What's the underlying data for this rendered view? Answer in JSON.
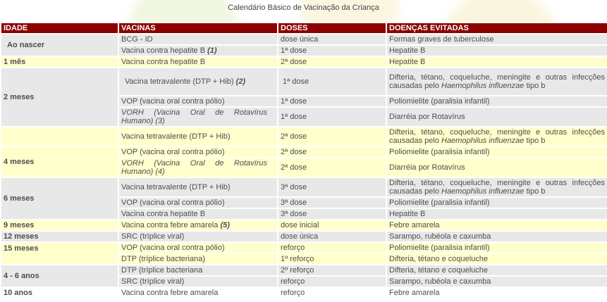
{
  "title": "Calendário Básico de Vacinação da Criança",
  "columns": [
    "IDADE",
    "VACINAS",
    "DOSES",
    "DOENÇAS EVITADAS"
  ],
  "colors": {
    "header_bg": "#8C0000",
    "header_text": "#FFFFFF",
    "row_gray": "#E8E8E8",
    "row_yellow": "#FFFFCC",
    "row_white": "#FFFFFF",
    "body_text": "#4D4D4D"
  },
  "rows": [
    {
      "age": "Ao nascer",
      "vaccine": "BCG - ID",
      "dose": "dose única",
      "disease": "Formas graves de tuberculose"
    },
    {
      "vaccine": "Vacina contra hepatite B",
      "marker": "(1)",
      "dose": "1ª dose",
      "disease": "Hepatite B"
    },
    {
      "age": "1 mês",
      "vaccine": "Vacina contra hepatite B",
      "dose": "2ª dose",
      "disease": "Hepatite B"
    },
    {
      "age": "2 meses",
      "vaccine": "Vacina tetravalente (DTP + Hib)",
      "marker": "(2)",
      "dose": "1ª dose",
      "disease_pre": "Difteria, tétano, coqueluche, meningite e outras infecções causadas pelo ",
      "disease_italic": "Haemophilus influenzae",
      "disease_post": " tipo b"
    },
    {
      "vaccine": "VOP (vacina oral contra pólio)",
      "dose": "1ª dose",
      "disease": "Poliomielite (paralisia infantil)"
    },
    {
      "vaccine": "VORH (Vacina Oral de Rotavírus Humano)",
      "marker": "(3)",
      "dose": "1ª dose",
      "disease": "Diarréia por Rotavírus"
    },
    {
      "age": "",
      "vaccine": "Vacina tetravalente (DTP + Hib)",
      "dose": "2ª dose",
      "disease_pre": "Difteria, tétano, coqueluche, meningite e outras infecções causadas pelo ",
      "disease_italic": "Haemophilus influenzae",
      "disease_post": " tipo b"
    },
    {
      "age": "4 meses",
      "vaccine": "VOP (vacina oral contra pólio)",
      "dose": "2ª dose",
      "disease": "Poliomielite (paralisia infantil)"
    },
    {
      "vaccine": "VORH (Vacina Oral de Rotavírus Humano)",
      "marker": "(4)",
      "dose": "2ª dose",
      "disease": "Diarréia por Rotavírus"
    },
    {
      "age": "6 meses",
      "vaccine": "Vacina tetravalente (DTP + Hib)",
      "dose": "3ª dose",
      "disease_pre": "Difteria, tétano, coqueluche, meningite e outras infecções causadas pelo ",
      "disease_italic": "Haemophilus influenzae",
      "disease_post": " tipo b"
    },
    {
      "vaccine": "VOP (vacina oral contra pólio)",
      "dose": "3ª dose",
      "disease": "Poliomielite (paralisia infantil)"
    },
    {
      "vaccine": "Vacina contra hepatite B",
      "dose": "3ª dose",
      "disease": "Hepatite B"
    },
    {
      "age": "9 meses",
      "vaccine": "Vacina contra febre amarela",
      "marker": "(5)",
      "dose": "dose inicial",
      "disease": "Febre amarela"
    },
    {
      "age": "12 meses",
      "vaccine": "SRC (tríplice viral)",
      "dose": "dose única",
      "disease": "Sarampo, rubéola e caxumba"
    },
    {
      "age": "15 meses",
      "vaccine": "VOP (vacina oral contra pólio)",
      "dose": "reforço",
      "disease": "Poliomielite (paralisia infantil)"
    },
    {
      "vaccine": "DTP (tríplice bacteriana)",
      "dose": "1º reforço",
      "disease": "Difteria, tétano e coqueluche"
    },
    {
      "age": "4 - 6 anos",
      "vaccine": "DTP (tríplice bacteriana",
      "dose": "2º reforço",
      "disease": "Difteria, tétano e coqueluche"
    },
    {
      "vaccine": "SRC (tríplice viral)",
      "dose": "reforço",
      "disease": "Sarampo, rubéola e caxumba"
    },
    {
      "age": "10 anos",
      "vaccine": "Vacina contra febre amarela",
      "dose": "reforço",
      "disease": "Febre amarela"
    }
  ]
}
